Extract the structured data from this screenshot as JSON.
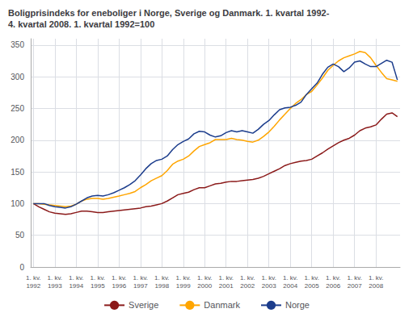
{
  "chart_data": {
    "type": "line",
    "title": "Boligprisindeks for eneboliger i Norge, Sverige og Danmark. 1. kvartal 1992-\n4. kvartal 2008. 1. kvartal 1992=100",
    "categories": [
      "1. kv.\n1992",
      null,
      null,
      null,
      "1. kv.\n1993",
      null,
      null,
      null,
      "1. kv.\n1994",
      null,
      null,
      null,
      "1. kv.\n1995",
      null,
      null,
      null,
      "1. kv.\n1996",
      null,
      null,
      null,
      "1. kv.\n1997",
      null,
      null,
      null,
      "1. kv.\n1998",
      null,
      null,
      null,
      "1. kv.\n1999",
      null,
      null,
      null,
      "1. kv.\n2000",
      null,
      null,
      null,
      "1. kv.\n2001",
      null,
      null,
      null,
      "1. kv.\n2002",
      null,
      null,
      null,
      "1. kv.\n2003",
      null,
      null,
      null,
      "1. kv.\n2004",
      null,
      null,
      null,
      "1. kv.\n2005",
      null,
      null,
      null,
      "1. kv.\n2006",
      null,
      null,
      null,
      "1. kv.\n2007",
      null,
      null,
      null,
      "1. kv.\n2008",
      null,
      null,
      null,
      null
    ],
    "series": [
      {
        "name": "Sverige",
        "color": "#8B1A1A",
        "values": [
          100,
          95,
          91,
          87,
          85,
          84,
          83,
          84,
          86,
          88,
          88,
          87,
          86,
          86,
          87,
          88,
          89,
          90,
          91,
          92,
          93,
          95,
          96,
          98,
          100,
          104,
          109,
          114,
          116,
          118,
          122,
          125,
          125,
          128,
          131,
          132,
          134,
          135,
          135,
          136,
          137,
          138,
          140,
          143,
          147,
          151,
          155,
          160,
          163,
          165,
          167,
          168,
          170,
          175,
          180,
          186,
          191,
          196,
          200,
          203,
          208,
          215,
          219,
          221,
          224,
          233,
          241,
          243,
          237
        ]
      },
      {
        "name": "Danmark",
        "color": "#FFA500",
        "values": [
          100,
          100,
          99,
          98,
          97,
          96,
          95,
          96,
          99,
          104,
          107,
          108,
          108,
          107,
          108,
          110,
          112,
          114,
          116,
          119,
          125,
          130,
          136,
          140,
          144,
          152,
          162,
          167,
          170,
          175,
          183,
          190,
          193,
          196,
          201,
          201,
          201,
          203,
          201,
          200,
          198,
          197,
          200,
          206,
          213,
          222,
          232,
          241,
          250,
          258,
          264,
          272,
          277,
          287,
          298,
          310,
          318,
          325,
          330,
          333,
          336,
          340,
          338,
          330,
          318,
          307,
          297,
          295,
          293
        ]
      },
      {
        "name": "Norge",
        "color": "#1C3D8C",
        "values": [
          100,
          100,
          100,
          97,
          95,
          94,
          93,
          95,
          99,
          104,
          109,
          112,
          113,
          112,
          114,
          117,
          121,
          125,
          130,
          136,
          145,
          155,
          163,
          168,
          170,
          175,
          185,
          193,
          198,
          202,
          210,
          214,
          213,
          208,
          205,
          207,
          212,
          215,
          213,
          215,
          213,
          211,
          217,
          225,
          231,
          240,
          248,
          251,
          252,
          255,
          260,
          272,
          281,
          290,
          304,
          315,
          320,
          316,
          308,
          314,
          323,
          325,
          320,
          316,
          316,
          321,
          326,
          323,
          295
        ]
      }
    ],
    "ylim": [
      0,
      360
    ],
    "yticks": [
      0,
      50,
      100,
      150,
      200,
      250,
      300,
      350
    ],
    "grid": true,
    "legend": "bottom"
  }
}
